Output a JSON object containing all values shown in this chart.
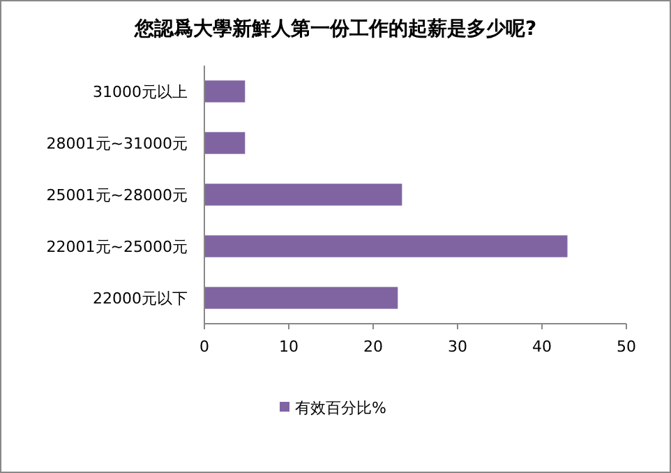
{
  "chart_data": {
    "type": "bar",
    "orientation": "horizontal",
    "title": "您認爲大學新鮮人第一份工作的起薪是多少呢?",
    "categories": [
      "31000元以上",
      "28001元~31000元",
      "25001元~28000元",
      "22001元~25000元",
      "22000元以下"
    ],
    "series": [
      {
        "name": "有效百分比%",
        "color": "#8064a2",
        "values": [
          4.9,
          4.9,
          23.5,
          43.1,
          23.0
        ]
      }
    ],
    "xlim": [
      0,
      50
    ],
    "xticks": [
      0,
      10,
      20,
      30,
      40,
      50
    ],
    "grid": false,
    "legend": "bottom"
  }
}
